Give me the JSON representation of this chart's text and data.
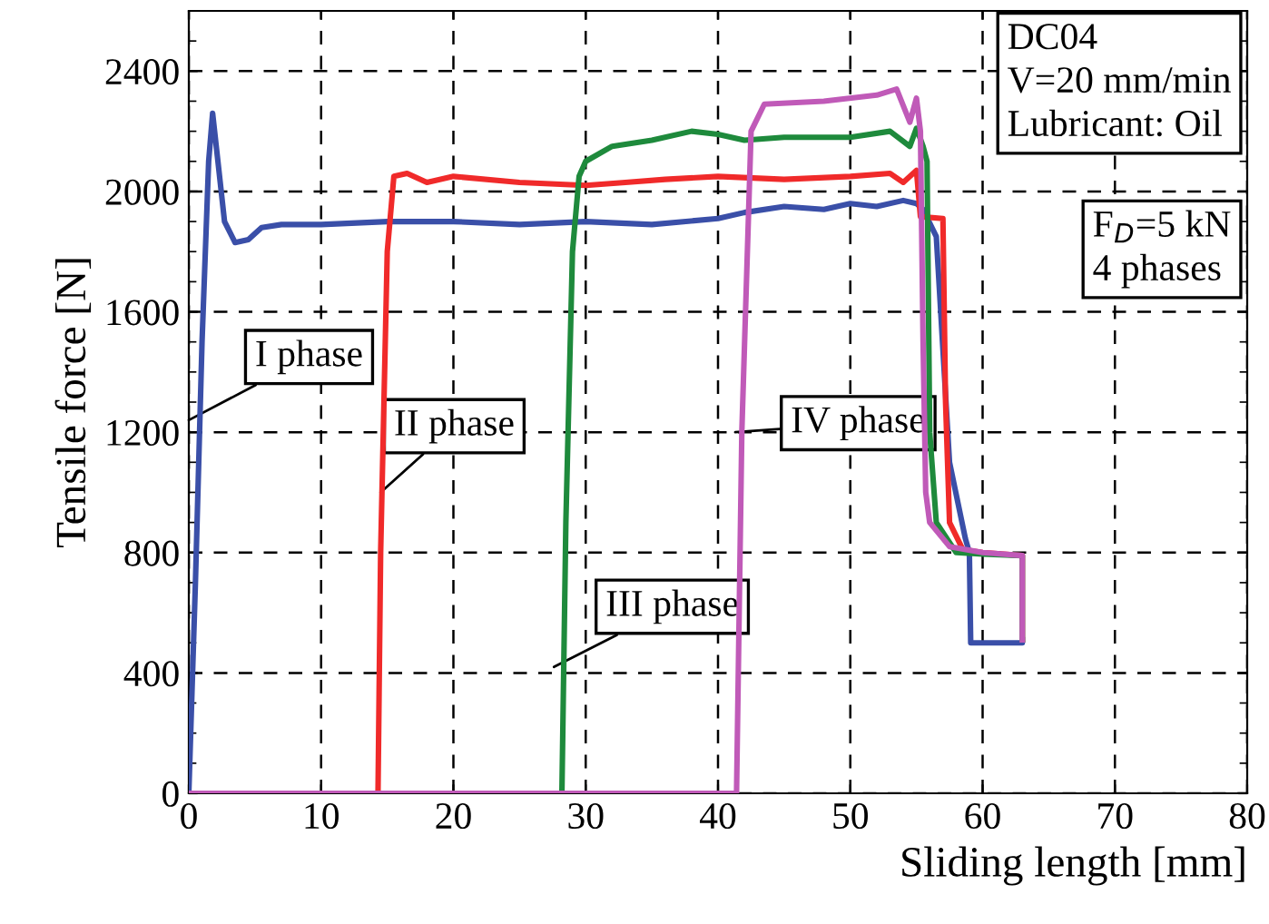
{
  "chart_data": {
    "type": "line",
    "xlabel": "Sliding length [mm]",
    "ylabel": "Tensile force [N]",
    "xlim": [
      0,
      80
    ],
    "ylim": [
      0,
      2600
    ],
    "xticks": [
      0,
      10,
      20,
      30,
      40,
      50,
      60,
      70,
      80
    ],
    "yticks": [
      0,
      400,
      800,
      1200,
      1600,
      2000,
      2400
    ],
    "grid": true,
    "line_style": "solid",
    "series": [
      {
        "color": "#3a4fa8",
        "x": [
          0,
          0.5,
          1,
          1.5,
          1.8,
          2.2,
          2.7,
          3.5,
          4.5,
          5.5,
          7,
          10,
          15,
          20,
          25,
          30,
          35,
          40,
          42,
          45,
          48,
          50,
          52,
          54,
          55,
          55.5,
          56.5,
          57.5,
          58.7,
          59,
          59.1,
          63,
          63
        ],
        "values": [
          0,
          700,
          1500,
          2100,
          2260,
          2100,
          1900,
          1830,
          1840,
          1880,
          1890,
          1890,
          1900,
          1900,
          1890,
          1900,
          1890,
          1910,
          1930,
          1950,
          1940,
          1960,
          1950,
          1970,
          1960,
          1940,
          1850,
          1100,
          846,
          800,
          500,
          500,
          510
        ]
      },
      {
        "color": "#f02a2a",
        "x": [
          0,
          14.3,
          14.5,
          15,
          15.5,
          16.5,
          18,
          20,
          25,
          30,
          33,
          36,
          40,
          45,
          50,
          53,
          54,
          55,
          55.3,
          57,
          57.2,
          57.5,
          58.5,
          60,
          63,
          63
        ],
        "values": [
          0,
          0,
          800,
          1800,
          2050,
          2060,
          2030,
          2050,
          2030,
          2020,
          2030,
          2040,
          2050,
          2040,
          2050,
          2060,
          2030,
          2070,
          1916,
          1910,
          1300,
          900,
          810,
          800,
          790,
          510
        ]
      },
      {
        "color": "#1e8a3c",
        "x": [
          0,
          28.2,
          28.5,
          29,
          29.5,
          30,
          32,
          35,
          38,
          40,
          42,
          45,
          50,
          53,
          54.5,
          55,
          55.5,
          55.8,
          56,
          56.5,
          58,
          60,
          63,
          63
        ],
        "values": [
          0,
          0,
          900,
          1800,
          2050,
          2100,
          2150,
          2170,
          2200,
          2190,
          2170,
          2180,
          2180,
          2200,
          2150,
          2210,
          2150,
          2100,
          1200,
          900,
          800,
          795,
          790,
          510
        ]
      },
      {
        "color": "#c05ab8",
        "x": [
          0,
          41.4,
          41.8,
          42.5,
          43.5,
          48,
          52,
          53.5,
          54.5,
          55,
          55.3,
          55.5,
          55.7,
          56,
          57.5,
          60,
          63,
          63
        ],
        "values": [
          0,
          0,
          1200,
          2200,
          2290,
          2300,
          2320,
          2340,
          2230,
          2310,
          2200,
          1500,
          1000,
          900,
          820,
          800,
          790,
          510
        ]
      }
    ],
    "annotations": [
      {
        "text": "I phase",
        "x": 0,
        "y": 1240
      },
      {
        "text": "II phase",
        "x": 14.5,
        "y": 1000
      },
      {
        "text": "III phase",
        "x": 27.6,
        "y": 420
      },
      {
        "text": "IV phase",
        "x": 41.3,
        "y": 1200
      },
      "DC04\nV=20 mm/min\nLubricant: Oil",
      "F$_{D}$=5 kN\n4 phases"
    ]
  }
}
